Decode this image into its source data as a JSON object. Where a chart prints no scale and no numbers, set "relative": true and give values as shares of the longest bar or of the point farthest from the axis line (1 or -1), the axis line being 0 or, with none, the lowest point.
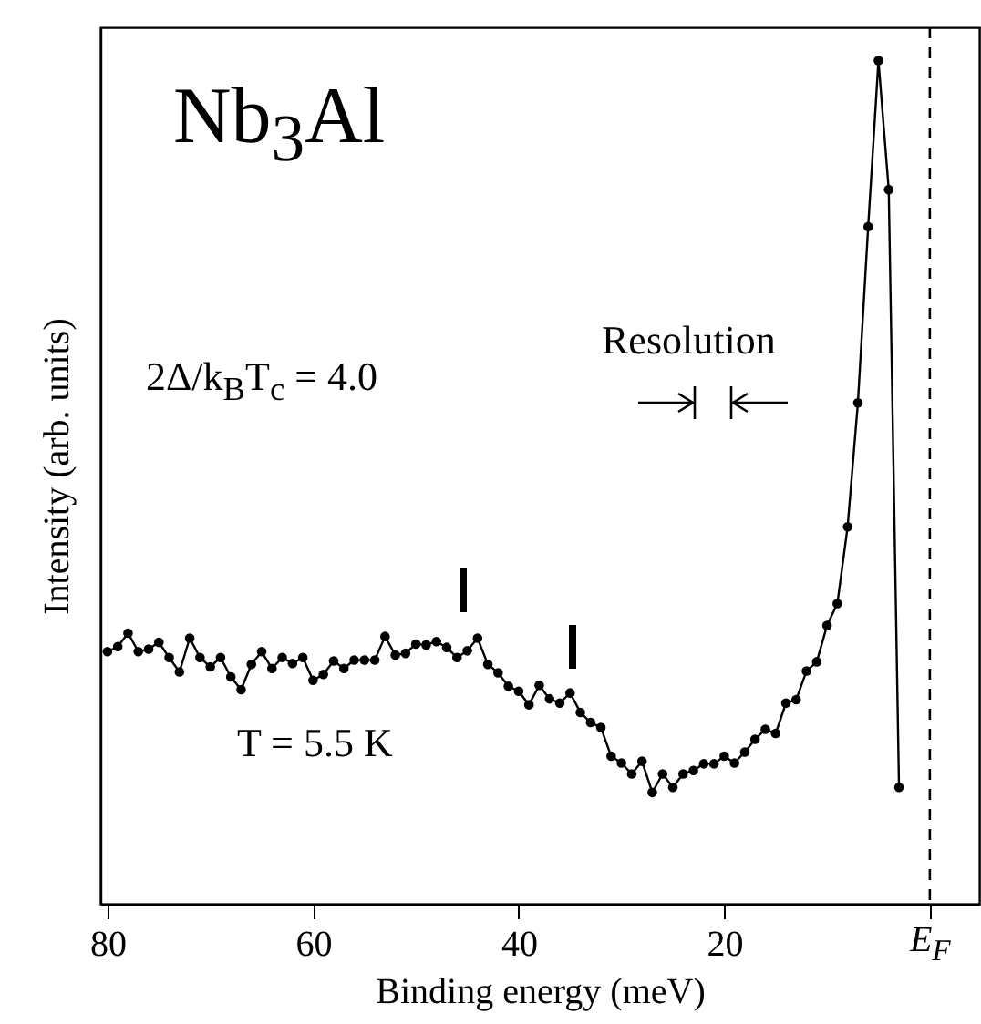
{
  "chart_data": {
    "type": "line",
    "title": "Nb$_{3}$Al",
    "xlabel": "Binding energy (meV)",
    "ylabel": "Intensity (arb. units)",
    "annotations": [
      "2Δ/k$_{B}$T$_{c}$ = 4.0",
      "Resolution",
      "T = 5.5 K"
    ],
    "relative": true,
    "x": [
      80,
      79,
      78,
      77,
      76,
      75,
      74,
      73,
      72,
      71,
      70,
      69,
      68,
      67,
      66,
      65,
      64,
      63,
      62,
      61,
      60,
      59,
      58,
      57,
      56,
      55,
      54,
      53,
      52,
      51,
      50,
      49,
      48,
      47,
      46,
      45,
      44,
      43,
      42,
      41,
      40,
      39,
      38,
      37,
      36,
      35,
      34,
      33,
      32,
      31,
      30,
      29,
      28,
      27,
      26,
      25,
      24,
      23,
      22,
      21,
      20,
      19,
      18,
      17,
      16,
      15,
      14,
      13,
      12,
      11,
      10,
      9,
      8,
      7,
      6,
      5,
      4,
      3
    ],
    "series": [
      {
        "color": "#000000",
        "values": [
          0.299,
          0.305,
          0.321,
          0.299,
          0.302,
          0.31,
          0.292,
          0.275,
          0.315,
          0.292,
          0.281,
          0.292,
          0.269,
          0.254,
          0.284,
          0.299,
          0.279,
          0.292,
          0.285,
          0.292,
          0.265,
          0.272,
          0.288,
          0.279,
          0.289,
          0.289,
          0.289,
          0.317,
          0.295,
          0.297,
          0.308,
          0.307,
          0.311,
          0.304,
          0.292,
          0.3,
          0.315,
          0.284,
          0.274,
          0.258,
          0.252,
          0.236,
          0.259,
          0.243,
          0.238,
          0.25,
          0.227,
          0.215,
          0.209,
          0.175,
          0.167,
          0.154,
          0.169,
          0.132,
          0.154,
          0.138,
          0.154,
          0.158,
          0.166,
          0.166,
          0.175,
          0.167,
          0.18,
          0.195,
          0.207,
          0.202,
          0.238,
          0.242,
          0.276,
          0.287,
          0.33,
          0.356,
          0.447,
          0.594,
          0.803,
          1.0,
          0.847,
          0.138
        ]
      }
    ],
    "xlim": [
      80.7,
      -4.8
    ],
    "xticks": [
      80,
      60,
      40,
      20,
      {
        "value": 0,
        "label": "E$_{F}$"
      }
    ],
    "ref_lines": [
      {
        "axis": "x",
        "value": 0,
        "color": "#000000",
        "line_style": "dashed"
      }
    ],
    "tick_labels": "x",
    "marker": "circle",
    "line_style": "solid"
  }
}
